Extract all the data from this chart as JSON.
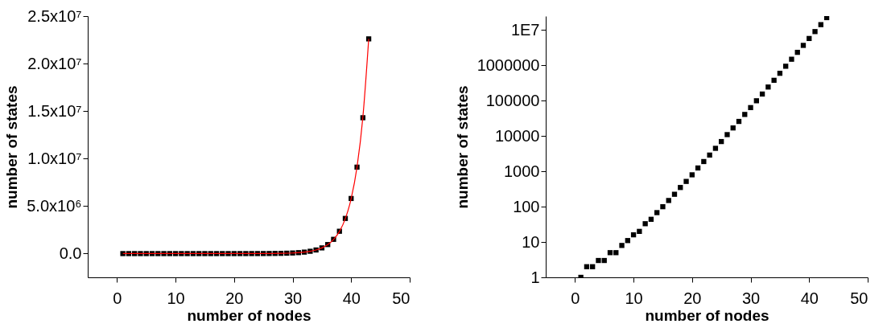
{
  "chart_data": [
    {
      "type": "scatter",
      "xlabel": "number of nodes",
      "ylabel": "number of states",
      "marker": "square",
      "grid": false,
      "xlim": [
        -5,
        50
      ],
      "xticks": [
        0,
        10,
        20,
        30,
        40,
        50
      ],
      "ylim": [
        -2500000,
        25000000
      ],
      "yticks": [
        {
          "value": 0,
          "label": "0.0"
        },
        {
          "value": 5000000,
          "label": "5.0x10⁶"
        },
        {
          "value": 10000000,
          "label": "1.0x10⁷"
        },
        {
          "value": 15000000,
          "label": "1.5x10⁷"
        },
        {
          "value": 20000000,
          "label": "2.0x10⁷"
        },
        {
          "value": 25000000,
          "label": "2.5x10⁷"
        }
      ],
      "x": [
        1,
        2,
        3,
        4,
        5,
        6,
        7,
        8,
        9,
        10,
        11,
        12,
        13,
        14,
        15,
        16,
        17,
        18,
        19,
        20,
        21,
        22,
        23,
        24,
        25,
        26,
        27,
        28,
        29,
        30,
        31,
        32,
        33,
        34,
        35,
        36,
        37,
        38,
        39,
        40,
        41,
        42,
        43
      ],
      "series": [
        {
          "color": "#000000",
          "values": [
            1,
            2,
            2,
            3,
            3,
            5,
            5,
            8,
            11,
            16,
            20,
            33,
            44,
            68,
            100,
            150,
            225,
            350,
            520,
            800,
            1250,
            1900,
            2900,
            4500,
            7000,
            11000,
            17000,
            26000,
            41000,
            64000,
            100000,
            155000,
            245000,
            380000,
            600000,
            950000,
            1500000,
            2350000,
            3700000,
            5800000,
            9100000,
            14300000,
            22600000
          ]
        },
        {
          "type": "line",
          "color": "#ff0000",
          "marker": "none",
          "x": [
            1,
            25,
            28,
            30,
            32,
            33,
            34,
            35,
            36,
            37,
            38,
            39,
            40,
            41,
            42,
            43
          ],
          "values": [
            0,
            6000,
            25000,
            61000,
            150000,
            240000,
            380000,
            600000,
            940000,
            1480000,
            2330000,
            3670000,
            5780000,
            9110000,
            14350000,
            22600000
          ]
        }
      ]
    },
    {
      "type": "scatter",
      "xlabel": "number of nodes",
      "ylabel": "number of states",
      "marker": "square",
      "grid": false,
      "log": "y",
      "xlim": [
        -5,
        50
      ],
      "xticks": [
        0,
        10,
        20,
        30,
        40,
        50
      ],
      "ylim": [
        1,
        25000000
      ],
      "yticks": [
        1,
        10,
        100,
        1000,
        10000,
        100000,
        1000000,
        {
          "value": 10000000,
          "label": "1E7"
        }
      ],
      "x": [
        1,
        2,
        3,
        4,
        5,
        6,
        7,
        8,
        9,
        10,
        11,
        12,
        13,
        14,
        15,
        16,
        17,
        18,
        19,
        20,
        21,
        22,
        23,
        24,
        25,
        26,
        27,
        28,
        29,
        30,
        31,
        32,
        33,
        34,
        35,
        36,
        37,
        38,
        39,
        40,
        41,
        42,
        43
      ],
      "series": [
        {
          "color": "#000000",
          "values": [
            1,
            2,
            2,
            3,
            3,
            5,
            5,
            8,
            11,
            16,
            20,
            33,
            44,
            68,
            100,
            150,
            225,
            350,
            520,
            800,
            1250,
            1900,
            2900,
            4500,
            7000,
            11000,
            17000,
            26000,
            41000,
            64000,
            100000,
            155000,
            245000,
            380000,
            600000,
            950000,
            1500000,
            2350000,
            3700000,
            5800000,
            9100000,
            14300000,
            22600000
          ]
        }
      ]
    }
  ]
}
